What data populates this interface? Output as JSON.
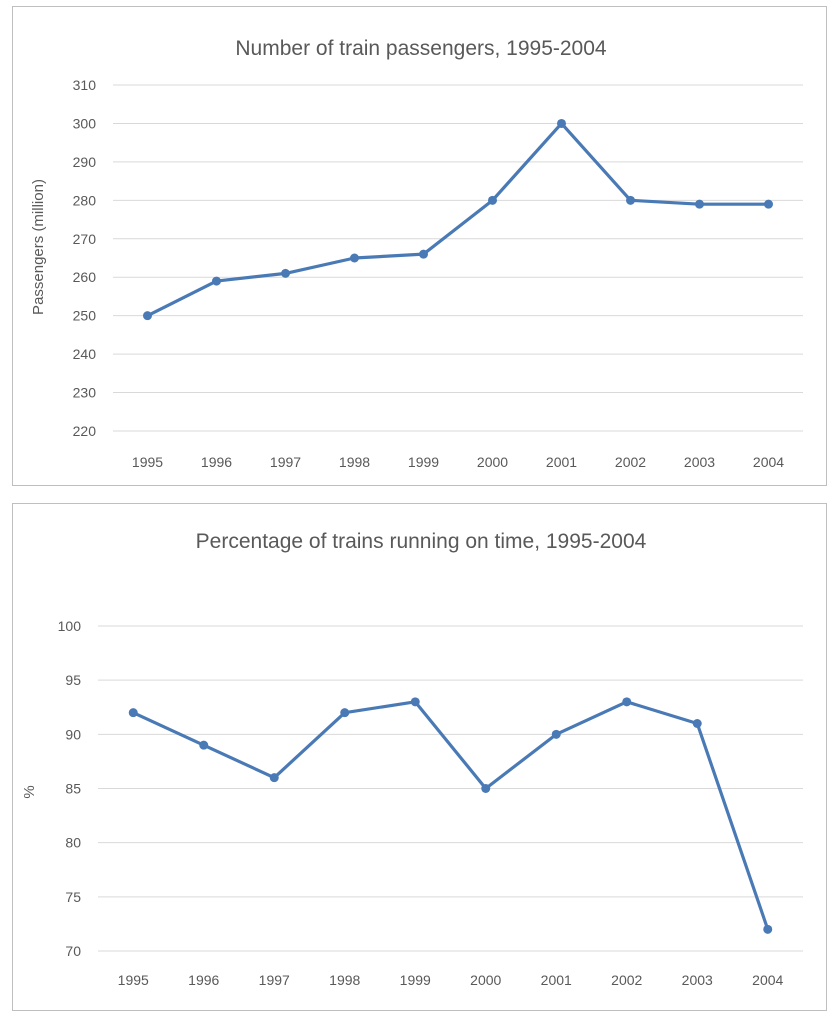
{
  "chart_data": [
    {
      "type": "line",
      "title": "Number of train passengers, 1995-2004",
      "xlabel": "",
      "ylabel": "Passengers (million)",
      "categories": [
        "1995",
        "1996",
        "1997",
        "1998",
        "1999",
        "2000",
        "2001",
        "2002",
        "2003",
        "2004"
      ],
      "series": [
        {
          "name": "Passengers",
          "values": [
            250,
            259,
            261,
            265,
            266,
            280,
            300,
            280,
            279,
            279
          ]
        }
      ],
      "ylim": [
        220,
        310
      ],
      "yticks": [
        220,
        230,
        240,
        250,
        260,
        270,
        280,
        290,
        300,
        310
      ],
      "grid": true,
      "color": "#4a7ab5"
    },
    {
      "type": "line",
      "title": "Percentage of trains running on time, 1995-2004",
      "xlabel": "",
      "ylabel": "%",
      "categories": [
        "1995",
        "1996",
        "1997",
        "1998",
        "1999",
        "2000",
        "2001",
        "2002",
        "2003",
        "2004"
      ],
      "series": [
        {
          "name": "On time",
          "values": [
            92,
            89,
            86,
            92,
            93,
            85,
            90,
            93,
            91,
            72
          ]
        }
      ],
      "ylim": [
        70,
        100
      ],
      "yticks": [
        70,
        75,
        80,
        85,
        90,
        95,
        100
      ],
      "grid": true,
      "color": "#4a7ab5"
    }
  ]
}
